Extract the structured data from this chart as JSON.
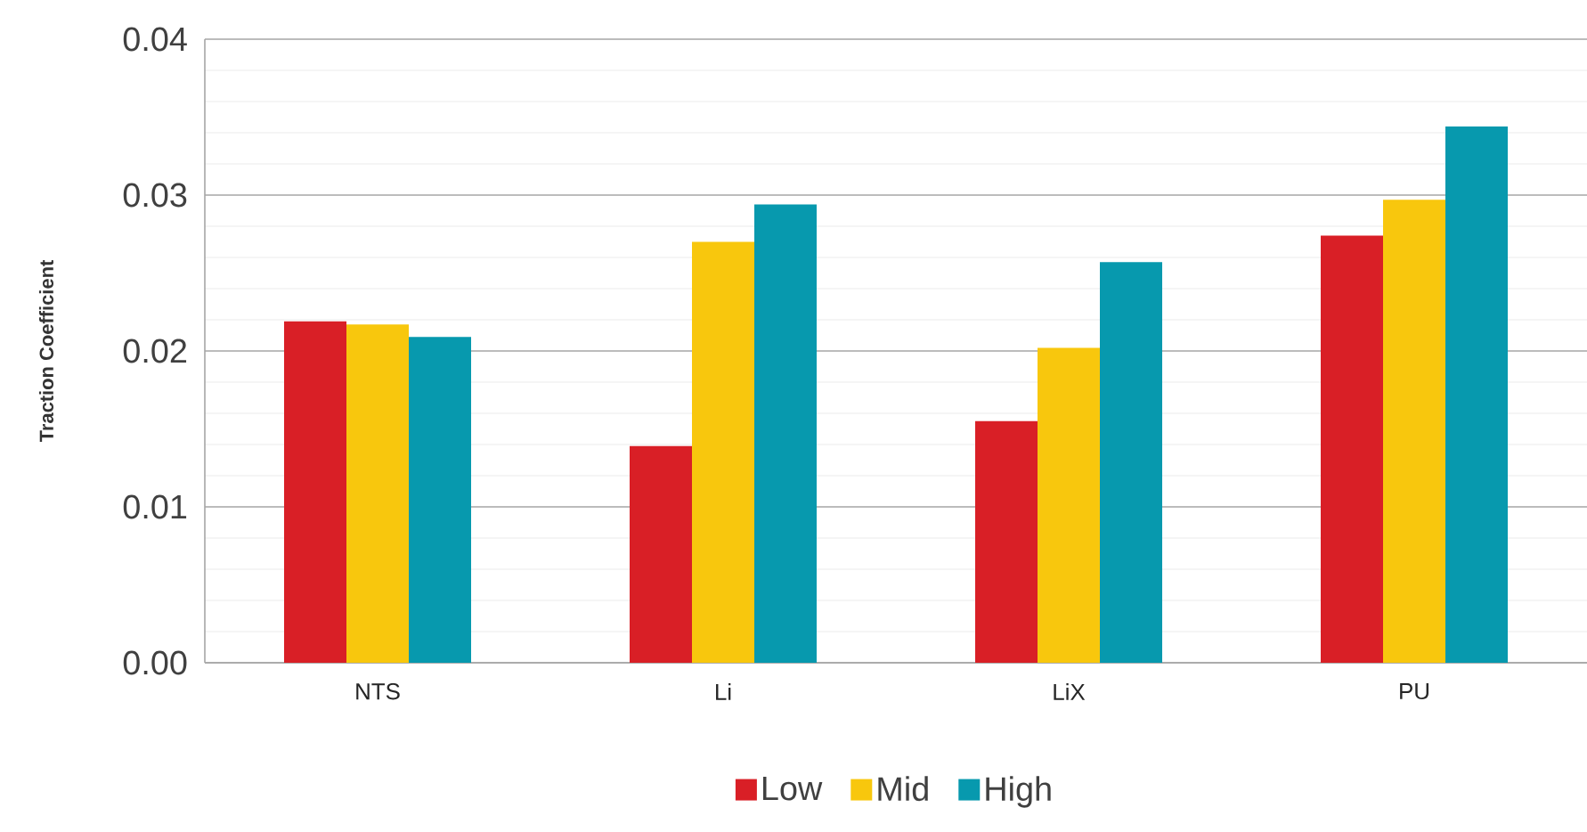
{
  "chart_data": {
    "type": "bar",
    "ylabel": "Traction Coefficient",
    "categories": [
      "NTS",
      "Li",
      "LiX",
      "PU"
    ],
    "series": [
      {
        "name": "Low",
        "color": "#d91f26",
        "values": [
          0.0219,
          0.0139,
          0.0155,
          0.0274
        ]
      },
      {
        "name": "Mid",
        "color": "#f8c70d",
        "values": [
          0.0217,
          0.027,
          0.0202,
          0.0297
        ]
      },
      {
        "name": "High",
        "color": "#0799ae",
        "values": [
          0.0209,
          0.0294,
          0.0257,
          0.0344
        ]
      }
    ],
    "ylim": [
      0,
      0.04
    ],
    "yticks": [
      {
        "value": 0,
        "label": "0.00"
      },
      0.01,
      0.02,
      0.03,
      0.04
    ],
    "grid": "y",
    "legend": "bottom"
  }
}
